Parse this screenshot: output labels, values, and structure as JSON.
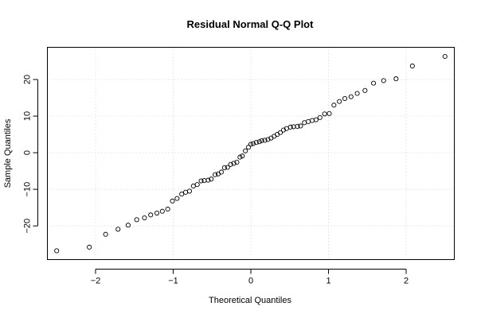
{
  "chart_data": {
    "type": "scatter",
    "title": "Residual Normal Q-Q Plot",
    "xlabel": "Theoretical Quantiles",
    "ylabel": "Sample Quantiles",
    "xlim": [
      -2.62,
      2.62
    ],
    "ylim": [
      -29.2,
      28.8
    ],
    "x_ticks": [
      -2,
      -1,
      0,
      1,
      2
    ],
    "y_ticks": [
      -20,
      -10,
      0,
      10,
      20
    ],
    "grid": true,
    "grid_style": "dotted",
    "marker": "open-circle",
    "colors": {
      "points": "#000000",
      "grid": "#d3d3d3",
      "frame": "#000000"
    },
    "series": [
      {
        "x": [
          -2.5,
          -2.08,
          -1.87,
          -1.71,
          -1.58,
          -1.47,
          -1.37,
          -1.29,
          -1.21,
          -1.14,
          -1.07,
          -1.01,
          -0.95,
          -0.89,
          -0.84,
          -0.79,
          -0.74,
          -0.69,
          -0.64,
          -0.6,
          -0.55,
          -0.51,
          -0.46,
          -0.42,
          -0.38,
          -0.34,
          -0.3,
          -0.26,
          -0.22,
          -0.18,
          -0.14,
          -0.11,
          -0.07,
          -0.03,
          0.0,
          0.03,
          0.07,
          0.11,
          0.14,
          0.18,
          0.22,
          0.26,
          0.3,
          0.34,
          0.38,
          0.42,
          0.46,
          0.51,
          0.55,
          0.6,
          0.64,
          0.69,
          0.74,
          0.79,
          0.84,
          0.89,
          0.95,
          1.01,
          1.07,
          1.14,
          1.21,
          1.29,
          1.37,
          1.47,
          1.58,
          1.71,
          1.87,
          2.08,
          2.5
        ],
        "y": [
          -26.8,
          -25.8,
          -22.3,
          -20.9,
          -19.8,
          -18.3,
          -17.8,
          -17.0,
          -16.5,
          -16.0,
          -15.4,
          -13.2,
          -12.5,
          -11.3,
          -10.8,
          -10.5,
          -9.1,
          -8.7,
          -7.7,
          -7.6,
          -7.5,
          -7.2,
          -6.0,
          -5.8,
          -5.3,
          -4.1,
          -4.0,
          -3.2,
          -2.9,
          -2.6,
          -1.2,
          -0.9,
          0.5,
          1.5,
          2.3,
          2.5,
          2.8,
          3.0,
          3.3,
          3.4,
          3.6,
          4.0,
          4.5,
          5.0,
          5.5,
          6.2,
          6.6,
          7.0,
          7.1,
          7.2,
          7.3,
          8.2,
          8.5,
          8.8,
          9.0,
          9.6,
          10.6,
          10.7,
          13.0,
          14.0,
          14.8,
          15.3,
          16.2,
          17.0,
          19.0,
          19.7,
          20.2,
          23.7,
          26.3
        ]
      }
    ]
  }
}
